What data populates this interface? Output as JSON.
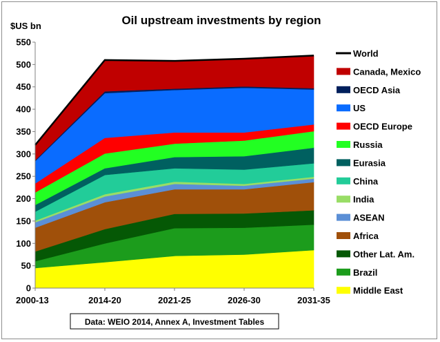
{
  "chart_data": {
    "type": "area",
    "title": "Oil upstream investments by region",
    "ylabel": "$US bn",
    "xlabel": "",
    "ylim": [
      0,
      550
    ],
    "y_ticks": [
      0,
      50,
      100,
      150,
      200,
      250,
      300,
      350,
      400,
      450,
      500,
      550
    ],
    "categories": [
      "2000-13",
      "2014-20",
      "2021-25",
      "2026-30",
      "2031-35"
    ],
    "stacked": true,
    "grid": false,
    "legend_position": "right",
    "source_note": "Data: WEIO 2014, Annex A, Investment Tables",
    "series": [
      {
        "name": "Middle East",
        "color": "#ffff00",
        "values": [
          45,
          58,
          72,
          75,
          85
        ]
      },
      {
        "name": "Brazil",
        "color": "#1c9c1c",
        "values": [
          15,
          42,
          62,
          60,
          57
        ]
      },
      {
        "name": "Other Lat. Am.",
        "color": "#055805",
        "values": [
          22,
          32,
          32,
          32,
          32
        ]
      },
      {
        "name": "Africa",
        "color": "#a0500a",
        "values": [
          53,
          60,
          55,
          54,
          63
        ]
      },
      {
        "name": "ASEAN",
        "color": "#5b8fd6",
        "values": [
          12,
          13,
          12,
          8,
          8
        ]
      },
      {
        "name": "India",
        "color": "#99dd66",
        "values": [
          4,
          5,
          5,
          4,
          4
        ]
      },
      {
        "name": "China",
        "color": "#22cc99",
        "values": [
          20,
          43,
          30,
          32,
          30
        ]
      },
      {
        "name": "Eurasia",
        "color": "#006060",
        "values": [
          15,
          15,
          25,
          30,
          35
        ]
      },
      {
        "name": "Russia",
        "color": "#22ff22",
        "values": [
          28,
          33,
          30,
          35,
          37
        ]
      },
      {
        "name": "OECD Europe",
        "color": "#ff0000",
        "values": [
          20,
          35,
          25,
          18,
          15
        ]
      },
      {
        "name": "US",
        "color": "#0a6cff",
        "values": [
          50,
          100,
          95,
          100,
          78
        ]
      },
      {
        "name": "OECD Asia",
        "color": "#001f5c",
        "values": [
          2,
          4,
          3,
          3,
          3
        ]
      },
      {
        "name": "Canada, Mexico",
        "color": "#c00000",
        "values": [
          34,
          70,
          62,
          62,
          73
        ]
      }
    ],
    "total_series": {
      "name": "World",
      "color": "#000000",
      "values": [
        320,
        510,
        508,
        513,
        520
      ]
    }
  }
}
